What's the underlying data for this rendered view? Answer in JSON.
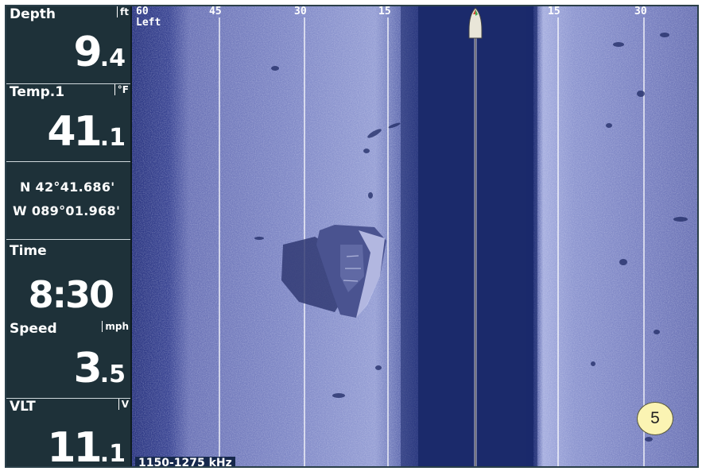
{
  "panel": {
    "depth": {
      "label": "Depth",
      "unit": "ft",
      "int": "9",
      "dec": ".4"
    },
    "temp": {
      "label": "Temp.1",
      "unit": "°F",
      "int": "41",
      "dec": ".1"
    },
    "position": {
      "lat": "N 42°41.686'",
      "lon": "W 089°01.968'"
    },
    "time": {
      "label": "Time",
      "value": "8:30"
    },
    "speed": {
      "label": "Speed",
      "unit": "mph",
      "int": "3",
      "dec": ".5"
    },
    "voltage": {
      "label": "VLT",
      "unit": "V",
      "int": "11",
      "dec": ".1"
    }
  },
  "sonar": {
    "side_label": "Left",
    "range_labels_left": [
      "60",
      "45",
      "30",
      "15"
    ],
    "range_labels_right": [
      "15",
      "30"
    ],
    "frequency": "1150-1275 kHz",
    "callout": "5",
    "colors": {
      "water_column": "#1b2a6b",
      "bottom_return": "#7d86c4",
      "range_line": "#ffffff",
      "callout_fill": "#fbf4b3"
    }
  }
}
